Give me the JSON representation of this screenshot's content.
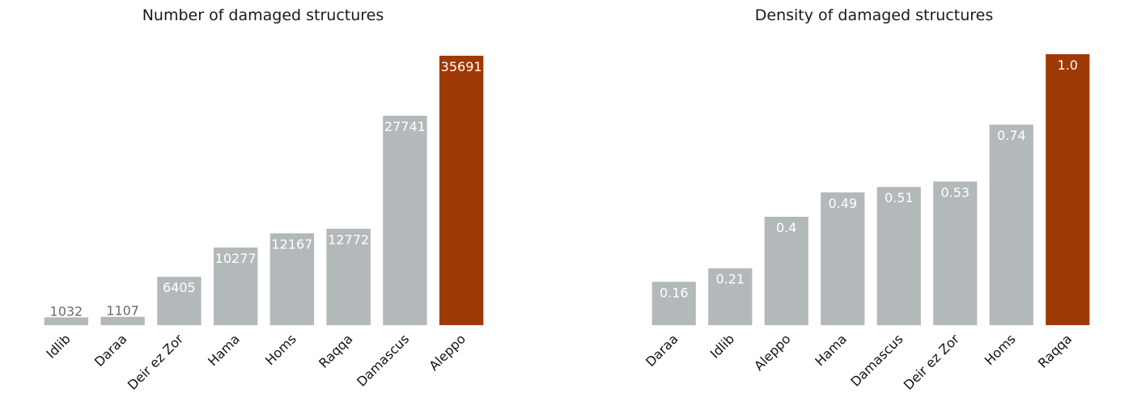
{
  "colors": {
    "default_bar": "#b3b9ba",
    "highlight_bar": "#9e3a05",
    "inside_label": "#ffffff",
    "outside_label": "#6b6b6b"
  },
  "chart_data": [
    {
      "type": "bar",
      "title": "Number of damaged structures",
      "xlabel": "",
      "ylabel": "",
      "ylim": [
        0,
        36000
      ],
      "grid": false,
      "categories": [
        "Idlib",
        "Daraa",
        "Deir ez Zor",
        "Hama",
        "Homs",
        "Raqqa",
        "Damascus",
        "Aleppo"
      ],
      "values": [
        1032,
        1107,
        6405,
        10277,
        12167,
        12772,
        27741,
        35691
      ],
      "labels": [
        "1032",
        "1107",
        "6405",
        "10277",
        "12167",
        "12772",
        "27741",
        "35691"
      ],
      "highlight": "Aleppo"
    },
    {
      "type": "bar",
      "title": "Density of damaged structures",
      "xlabel": "",
      "ylabel": "",
      "ylim": [
        0,
        1.0
      ],
      "grid": false,
      "categories": [
        "Daraa",
        "Idlib",
        "Aleppo",
        "Hama",
        "Damascus",
        "Deir ez Zor",
        "Homs",
        "Raqqa"
      ],
      "values": [
        0.16,
        0.21,
        0.4,
        0.49,
        0.51,
        0.53,
        0.74,
        1.0
      ],
      "labels": [
        "0.16",
        "0.21",
        "0.4",
        "0.49",
        "0.51",
        "0.53",
        "0.74",
        "1.0"
      ],
      "highlight": "Raqqa"
    }
  ]
}
